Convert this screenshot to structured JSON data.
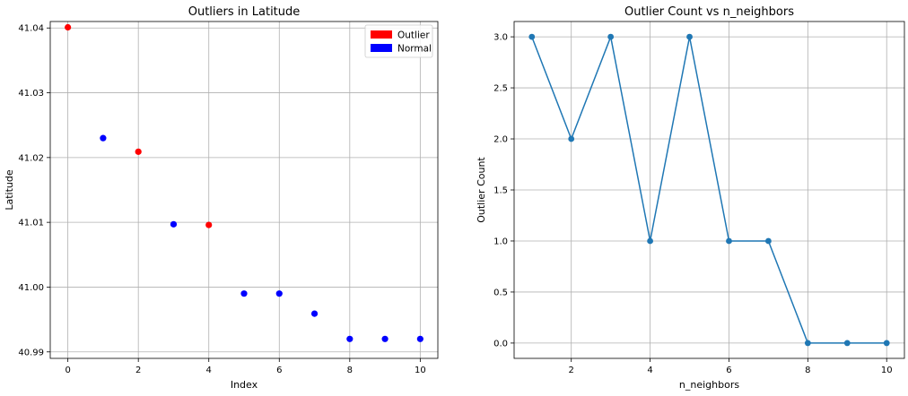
{
  "chart_data": [
    {
      "type": "scatter",
      "title": "Outliers in Latitude",
      "xlabel": "Index",
      "ylabel": "Latitude",
      "xlim": [
        -0.5,
        10.5
      ],
      "ylim": [
        40.989,
        41.041
      ],
      "xticks": [
        0,
        2,
        4,
        6,
        8,
        10
      ],
      "xtick_labels": [
        "0",
        "2",
        "4",
        "6",
        "8",
        "10"
      ],
      "yticks": [
        40.99,
        41.0,
        41.01,
        41.02,
        41.03,
        41.04
      ],
      "ytick_labels": [
        "40.99",
        "41.00",
        "41.01",
        "41.02",
        "41.03",
        "41.04"
      ],
      "grid": true,
      "legend_position": "top-right",
      "legend": [
        {
          "label": "Outlier",
          "color": "#ff0000"
        },
        {
          "label": "Normal",
          "color": "#0000ff"
        }
      ],
      "points": [
        {
          "x": 0,
          "y": 41.0401,
          "status": "Outlier"
        },
        {
          "x": 1,
          "y": 41.023,
          "status": "Normal"
        },
        {
          "x": 2,
          "y": 41.0209,
          "status": "Outlier"
        },
        {
          "x": 3,
          "y": 41.0097,
          "status": "Normal"
        },
        {
          "x": 4,
          "y": 41.0096,
          "status": "Outlier"
        },
        {
          "x": 5,
          "y": 40.999,
          "status": "Normal"
        },
        {
          "x": 6,
          "y": 40.999,
          "status": "Normal"
        },
        {
          "x": 7,
          "y": 40.9959,
          "status": "Normal"
        },
        {
          "x": 8,
          "y": 40.992,
          "status": "Normal"
        },
        {
          "x": 9,
          "y": 40.992,
          "status": "Normal"
        },
        {
          "x": 10,
          "y": 40.992,
          "status": "Normal"
        }
      ]
    },
    {
      "type": "line",
      "title": "Outlier Count vs n_neighbors",
      "xlabel": "n_neighbors",
      "ylabel": "Outlier Count",
      "xlim": [
        0.55,
        10.45
      ],
      "ylim": [
        -0.15,
        3.15
      ],
      "xticks": [
        2,
        4,
        6,
        8,
        10
      ],
      "xtick_labels": [
        "2",
        "4",
        "6",
        "8",
        "10"
      ],
      "yticks": [
        0,
        0.5,
        1,
        1.5,
        2,
        2.5,
        3
      ],
      "ytick_labels": [
        "0.0",
        "0.5",
        "1.0",
        "1.5",
        "2.0",
        "2.5",
        "3.0"
      ],
      "grid": true,
      "color": "#1f77b4",
      "x": [
        1,
        2,
        3,
        4,
        5,
        6,
        7,
        8,
        9,
        10
      ],
      "y": [
        3,
        2,
        3,
        1,
        3,
        1,
        1,
        0,
        0,
        0
      ]
    }
  ]
}
